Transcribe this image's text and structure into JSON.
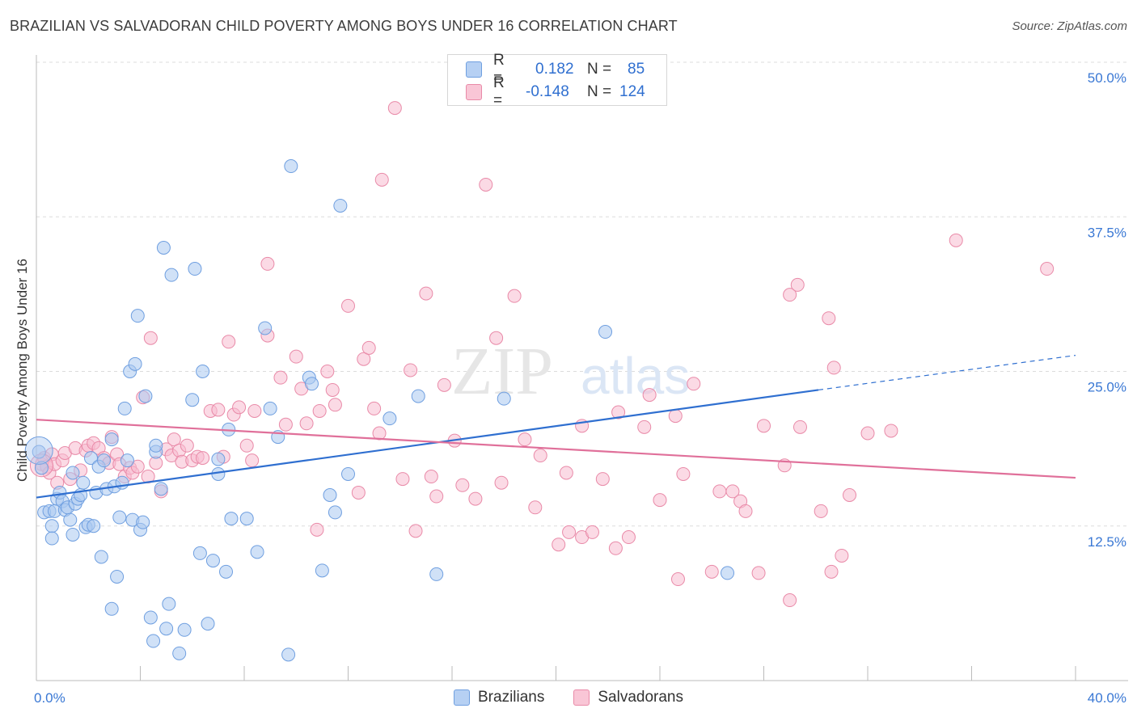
{
  "title": "BRAZILIAN VS SALVADORAN CHILD POVERTY AMONG BOYS UNDER 16 CORRELATION CHART",
  "source": "Source: ZipAtlas.com",
  "watermark": {
    "zip": "ZIP",
    "atlas": "atlas"
  },
  "legend": {
    "r_label": "R =",
    "n_label": "N =",
    "rows": [
      {
        "r": "0.182",
        "n": "85",
        "fill": "#b6d0f3",
        "stroke": "#6f9fe0"
      },
      {
        "r": "-0.148",
        "n": "124",
        "fill": "#f9c6d6",
        "stroke": "#e98aa8"
      }
    ]
  },
  "colors": {
    "blue_fill": "#aac8f0",
    "blue_stroke": "#6f9fe0",
    "blue_line": "#2f6fd0",
    "pink_fill": "#f7bcd0",
    "pink_stroke": "#e98aa8",
    "pink_line": "#e0709a",
    "tick_label": "#3a78d4",
    "grid": "#dcdcdc"
  },
  "chart_data": {
    "type": "scatter",
    "title": "BRAZILIAN VS SALVADORAN CHILD POVERTY AMONG BOYS UNDER 16 CORRELATION CHART",
    "xlabel": "",
    "ylabel": "Child Poverty Among Boys Under 16",
    "xlim": [
      0,
      40
    ],
    "ylim": [
      0,
      50
    ],
    "x_tick_labels": [
      "0.0%",
      "40.0%"
    ],
    "y_ticks": [
      12.5,
      25.0,
      37.5,
      50.0
    ],
    "y_tick_labels": [
      "12.5%",
      "25.0%",
      "37.5%",
      "50.0%"
    ],
    "grid": "horizontal dashed",
    "legend_bottom": [
      "Brazilians",
      "Salvadorans"
    ],
    "series": [
      {
        "name": "Brazilians",
        "trend": {
          "x0": 0,
          "y0": 14.8,
          "x1": 30.1,
          "y1": 23.5,
          "dash_to_x": 40,
          "dash_to_y": 26.3
        },
        "points": [
          [
            0.3,
            13.6
          ],
          [
            0.5,
            13.7
          ],
          [
            0.6,
            12.5
          ],
          [
            0.6,
            11.5
          ],
          [
            0.7,
            13.7
          ],
          [
            0.8,
            14.7
          ],
          [
            0.9,
            15.2
          ],
          [
            1.0,
            14.5
          ],
          [
            1.1,
            13.8
          ],
          [
            1.2,
            14.0
          ],
          [
            1.3,
            13.0
          ],
          [
            1.4,
            11.8
          ],
          [
            1.4,
            16.8
          ],
          [
            1.5,
            14.3
          ],
          [
            1.6,
            14.7
          ],
          [
            1.7,
            15.0
          ],
          [
            1.8,
            16.0
          ],
          [
            1.9,
            12.4
          ],
          [
            2.0,
            12.6
          ],
          [
            2.1,
            18.0
          ],
          [
            2.2,
            12.5
          ],
          [
            2.3,
            15.2
          ],
          [
            2.4,
            17.3
          ],
          [
            2.5,
            10.0
          ],
          [
            2.6,
            17.8
          ],
          [
            2.7,
            15.5
          ],
          [
            2.9,
            5.8
          ],
          [
            2.9,
            19.5
          ],
          [
            3.0,
            15.7
          ],
          [
            3.1,
            8.4
          ],
          [
            3.2,
            13.2
          ],
          [
            3.3,
            16.0
          ],
          [
            3.4,
            22.0
          ],
          [
            3.5,
            17.8
          ],
          [
            3.6,
            25.0
          ],
          [
            3.7,
            13.0
          ],
          [
            3.8,
            25.6
          ],
          [
            3.9,
            29.5
          ],
          [
            4.0,
            12.2
          ],
          [
            4.1,
            12.8
          ],
          [
            4.2,
            23.0
          ],
          [
            4.4,
            5.1
          ],
          [
            4.5,
            3.2
          ],
          [
            4.6,
            18.5
          ],
          [
            4.6,
            19.0
          ],
          [
            4.8,
            15.5
          ],
          [
            4.9,
            35.0
          ],
          [
            5.0,
            4.2
          ],
          [
            5.1,
            6.2
          ],
          [
            5.2,
            32.8
          ],
          [
            5.5,
            2.2
          ],
          [
            5.7,
            4.1
          ],
          [
            6.0,
            22.7
          ],
          [
            6.1,
            33.3
          ],
          [
            6.3,
            10.3
          ],
          [
            6.4,
            25.0
          ],
          [
            6.6,
            4.6
          ],
          [
            6.8,
            9.7
          ],
          [
            7.0,
            17.9
          ],
          [
            7.0,
            16.7
          ],
          [
            7.3,
            8.8
          ],
          [
            7.4,
            20.3
          ],
          [
            7.5,
            13.1
          ],
          [
            8.1,
            13.1
          ],
          [
            8.5,
            10.4
          ],
          [
            8.8,
            28.5
          ],
          [
            9.0,
            22.0
          ],
          [
            9.3,
            19.7
          ],
          [
            9.7,
            2.1
          ],
          [
            9.8,
            41.6
          ],
          [
            10.5,
            24.5
          ],
          [
            10.6,
            24.0
          ],
          [
            11.0,
            8.9
          ],
          [
            11.3,
            15.0
          ],
          [
            11.5,
            13.6
          ],
          [
            11.7,
            38.4
          ],
          [
            12.0,
            16.7
          ],
          [
            13.6,
            21.2
          ],
          [
            14.7,
            23.0
          ],
          [
            15.4,
            8.6
          ],
          [
            18.0,
            22.8
          ],
          [
            21.9,
            28.2
          ],
          [
            26.6,
            8.7
          ],
          [
            0.1,
            18.5
          ],
          [
            0.2,
            17.2
          ]
        ]
      },
      {
        "name": "Salvadorans",
        "trend": {
          "x0": 0,
          "y0": 21.1,
          "x1": 40,
          "y1": 16.4
        },
        "points": [
          [
            0.2,
            17.5
          ],
          [
            0.3,
            18.0
          ],
          [
            0.4,
            17.3
          ],
          [
            0.5,
            16.8
          ],
          [
            0.6,
            18.3
          ],
          [
            0.7,
            17.5
          ],
          [
            0.8,
            16.0
          ],
          [
            1.0,
            17.8
          ],
          [
            1.1,
            18.4
          ],
          [
            1.3,
            16.3
          ],
          [
            1.5,
            18.8
          ],
          [
            1.7,
            17.0
          ],
          [
            1.9,
            18.6
          ],
          [
            2.0,
            19.0
          ],
          [
            2.2,
            19.2
          ],
          [
            2.4,
            18.8
          ],
          [
            2.6,
            18.0
          ],
          [
            2.8,
            17.6
          ],
          [
            2.9,
            19.7
          ],
          [
            3.1,
            18.3
          ],
          [
            3.2,
            17.5
          ],
          [
            3.4,
            16.5
          ],
          [
            3.6,
            17.2
          ],
          [
            3.7,
            16.8
          ],
          [
            3.9,
            17.3
          ],
          [
            4.1,
            22.9
          ],
          [
            4.3,
            16.5
          ],
          [
            4.4,
            27.7
          ],
          [
            4.6,
            17.6
          ],
          [
            4.8,
            15.3
          ],
          [
            5.0,
            18.7
          ],
          [
            5.2,
            18.2
          ],
          [
            5.3,
            19.5
          ],
          [
            5.5,
            18.6
          ],
          [
            5.6,
            17.7
          ],
          [
            5.8,
            19.0
          ],
          [
            6.0,
            17.8
          ],
          [
            6.2,
            18.1
          ],
          [
            6.4,
            18.0
          ],
          [
            6.7,
            21.8
          ],
          [
            7.0,
            21.9
          ],
          [
            7.2,
            18.1
          ],
          [
            7.4,
            27.4
          ],
          [
            7.6,
            21.5
          ],
          [
            7.8,
            22.1
          ],
          [
            8.1,
            19.0
          ],
          [
            8.3,
            17.8
          ],
          [
            8.4,
            21.8
          ],
          [
            8.9,
            27.9
          ],
          [
            8.9,
            33.7
          ],
          [
            9.4,
            24.5
          ],
          [
            9.6,
            20.7
          ],
          [
            10.0,
            26.2
          ],
          [
            10.2,
            23.6
          ],
          [
            10.4,
            20.8
          ],
          [
            10.8,
            12.2
          ],
          [
            10.9,
            21.8
          ],
          [
            11.2,
            25.0
          ],
          [
            11.4,
            23.5
          ],
          [
            11.5,
            22.3
          ],
          [
            12.0,
            30.3
          ],
          [
            12.4,
            15.2
          ],
          [
            12.6,
            26.0
          ],
          [
            12.8,
            26.9
          ],
          [
            13.0,
            22.0
          ],
          [
            13.2,
            20.0
          ],
          [
            13.3,
            40.5
          ],
          [
            13.8,
            46.3
          ],
          [
            14.1,
            16.3
          ],
          [
            14.4,
            25.1
          ],
          [
            14.6,
            12.1
          ],
          [
            15.0,
            31.3
          ],
          [
            15.2,
            16.5
          ],
          [
            15.4,
            14.9
          ],
          [
            15.7,
            23.9
          ],
          [
            16.1,
            19.4
          ],
          [
            16.4,
            15.8
          ],
          [
            16.9,
            14.7
          ],
          [
            17.3,
            40.1
          ],
          [
            17.7,
            27.7
          ],
          [
            17.9,
            16.0
          ],
          [
            18.4,
            31.1
          ],
          [
            18.8,
            19.5
          ],
          [
            19.2,
            14.0
          ],
          [
            19.4,
            18.2
          ],
          [
            20.1,
            11.0
          ],
          [
            20.4,
            16.8
          ],
          [
            20.5,
            12.0
          ],
          [
            21.0,
            11.6
          ],
          [
            21.0,
            20.6
          ],
          [
            21.4,
            12.0
          ],
          [
            21.8,
            16.3
          ],
          [
            22.3,
            10.7
          ],
          [
            22.4,
            21.7
          ],
          [
            22.8,
            11.6
          ],
          [
            23.4,
            20.5
          ],
          [
            23.6,
            23.1
          ],
          [
            24.0,
            14.6
          ],
          [
            24.6,
            21.4
          ],
          [
            24.7,
            8.2
          ],
          [
            24.9,
            16.7
          ],
          [
            25.3,
            24.0
          ],
          [
            26.0,
            8.8
          ],
          [
            26.3,
            15.3
          ],
          [
            26.8,
            15.3
          ],
          [
            27.1,
            14.5
          ],
          [
            27.3,
            13.7
          ],
          [
            27.8,
            8.7
          ],
          [
            28.0,
            20.6
          ],
          [
            28.8,
            17.4
          ],
          [
            29.0,
            31.2
          ],
          [
            29.3,
            32.0
          ],
          [
            29.4,
            20.5
          ],
          [
            29.0,
            6.5
          ],
          [
            30.2,
            13.7
          ],
          [
            30.5,
            29.3
          ],
          [
            30.7,
            25.3
          ],
          [
            30.6,
            8.8
          ],
          [
            31.3,
            15.0
          ],
          [
            31.0,
            10.1
          ],
          [
            32.0,
            20.0
          ],
          [
            32.9,
            20.2
          ],
          [
            35.4,
            35.6
          ],
          [
            38.9,
            33.3
          ]
        ]
      }
    ]
  }
}
